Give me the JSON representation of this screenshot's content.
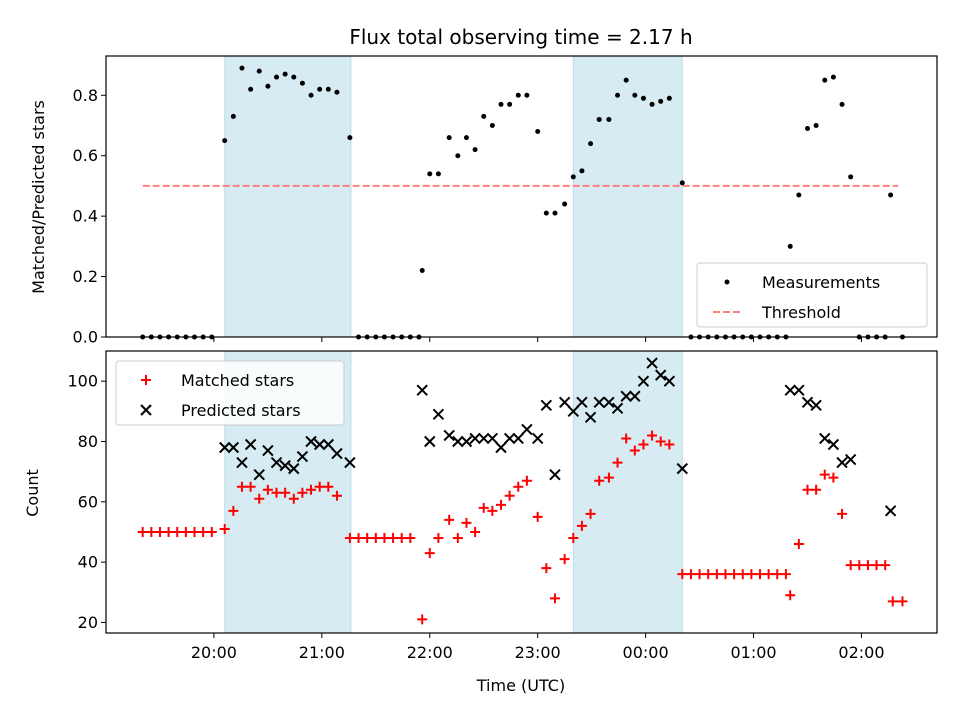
{
  "chart_data": [
    {
      "type": "scatter",
      "title": "Flux total observing time = 2.17 h",
      "ylabel": "Matched/Predicted stars",
      "xlabel": "",
      "x_unit": "hours since 00:00 UTC (times after midnight continue past 24)",
      "xlim": [
        19.0,
        26.7
      ],
      "ylim": [
        0.0,
        0.93
      ],
      "yticks": [
        "0.0",
        "0.2",
        "0.4",
        "0.6",
        "0.8"
      ],
      "ytick_values": [
        0.0,
        0.2,
        0.4,
        0.6,
        0.8
      ],
      "xticks": [
        "20:00",
        "21:00",
        "22:00",
        "23:00",
        "00:00",
        "01:00",
        "02:00"
      ],
      "xtick_values": [
        20,
        21,
        22,
        23,
        24,
        25,
        26
      ],
      "show_xtick_labels": false,
      "legend": {
        "location": "lower-right",
        "entries": [
          {
            "label": "Measurements",
            "marker": "dot",
            "color": "#000000"
          },
          {
            "label": "Threshold",
            "marker": "dashed-line",
            "color": "#ff7f7f"
          }
        ]
      },
      "spans": [
        {
          "x0": 20.1,
          "x1": 21.27,
          "color": "#add8e6"
        },
        {
          "x0": 23.33,
          "x1": 24.34,
          "color": "#add8e6"
        }
      ],
      "threshold": {
        "name": "Threshold",
        "value": 0.5,
        "x0": 19.34,
        "x1": 26.34,
        "color": "#ff7f7f"
      },
      "series": [
        {
          "name": "Measurements",
          "color": "#000000",
          "points": [
            [
              19.34,
              0
            ],
            [
              19.42,
              0
            ],
            [
              19.5,
              0
            ],
            [
              19.58,
              0
            ],
            [
              19.66,
              0
            ],
            [
              19.74,
              0
            ],
            [
              19.82,
              0
            ],
            [
              19.9,
              0
            ],
            [
              19.98,
              0
            ],
            [
              20.1,
              0.65
            ],
            [
              20.18,
              0.73
            ],
            [
              20.26,
              0.89
            ],
            [
              20.34,
              0.82
            ],
            [
              20.42,
              0.88
            ],
            [
              20.5,
              0.83
            ],
            [
              20.58,
              0.86
            ],
            [
              20.66,
              0.87
            ],
            [
              20.74,
              0.86
            ],
            [
              20.82,
              0.84
            ],
            [
              20.9,
              0.8
            ],
            [
              20.98,
              0.82
            ],
            [
              21.06,
              0.82
            ],
            [
              21.14,
              0.81
            ],
            [
              21.26,
              0.66
            ],
            [
              21.34,
              0
            ],
            [
              21.42,
              0
            ],
            [
              21.5,
              0
            ],
            [
              21.58,
              0
            ],
            [
              21.66,
              0
            ],
            [
              21.74,
              0
            ],
            [
              21.82,
              0
            ],
            [
              21.9,
              0
            ],
            [
              21.93,
              0.22
            ],
            [
              22.0,
              0.54
            ],
            [
              22.08,
              0.54
            ],
            [
              22.18,
              0.66
            ],
            [
              22.26,
              0.6
            ],
            [
              22.34,
              0.66
            ],
            [
              22.42,
              0.62
            ],
            [
              22.5,
              0.73
            ],
            [
              22.58,
              0.7
            ],
            [
              22.66,
              0.77
            ],
            [
              22.74,
              0.77
            ],
            [
              22.82,
              0.8
            ],
            [
              22.9,
              0.8
            ],
            [
              23.0,
              0.68
            ],
            [
              23.08,
              0.41
            ],
            [
              23.16,
              0.41
            ],
            [
              23.25,
              0.44
            ],
            [
              23.33,
              0.53
            ],
            [
              23.41,
              0.55
            ],
            [
              23.49,
              0.64
            ],
            [
              23.57,
              0.72
            ],
            [
              23.66,
              0.72
            ],
            [
              23.74,
              0.8
            ],
            [
              23.82,
              0.85
            ],
            [
              23.9,
              0.8
            ],
            [
              23.98,
              0.79
            ],
            [
              24.06,
              0.77
            ],
            [
              24.14,
              0.78
            ],
            [
              24.22,
              0.79
            ],
            [
              24.34,
              0.51
            ],
            [
              24.42,
              0
            ],
            [
              24.5,
              0
            ],
            [
              24.58,
              0
            ],
            [
              24.66,
              0
            ],
            [
              24.74,
              0
            ],
            [
              24.82,
              0
            ],
            [
              24.9,
              0
            ],
            [
              24.98,
              0
            ],
            [
              25.06,
              0
            ],
            [
              25.14,
              0
            ],
            [
              25.22,
              0
            ],
            [
              25.3,
              0
            ],
            [
              25.34,
              0.3
            ],
            [
              25.42,
              0.47
            ],
            [
              25.5,
              0.69
            ],
            [
              25.58,
              0.7
            ],
            [
              25.66,
              0.85
            ],
            [
              25.74,
              0.86
            ],
            [
              25.82,
              0.77
            ],
            [
              25.9,
              0.53
            ],
            [
              25.98,
              0
            ],
            [
              26.06,
              0
            ],
            [
              26.14,
              0
            ],
            [
              26.22,
              0
            ],
            [
              26.27,
              0.47
            ],
            [
              26.38,
              0
            ]
          ]
        }
      ]
    },
    {
      "type": "scatter",
      "title": "",
      "ylabel": "Count",
      "xlabel": "Time (UTC)",
      "x_unit": "hours since 00:00 UTC (times after midnight continue past 24)",
      "xlim": [
        19.0,
        26.7
      ],
      "ylim": [
        16.5,
        110
      ],
      "yticks": [
        "20",
        "40",
        "60",
        "80",
        "100"
      ],
      "ytick_values": [
        20,
        40,
        60,
        80,
        100
      ],
      "xticks": [
        "20:00",
        "21:00",
        "22:00",
        "23:00",
        "00:00",
        "01:00",
        "02:00"
      ],
      "xtick_values": [
        20,
        21,
        22,
        23,
        24,
        25,
        26
      ],
      "show_xtick_labels": true,
      "legend": {
        "location": "upper-left",
        "entries": [
          {
            "label": "Matched stars",
            "marker": "plus",
            "color": "#ff0000"
          },
          {
            "label": "Predicted stars",
            "marker": "x",
            "color": "#000000"
          }
        ]
      },
      "spans": [
        {
          "x0": 20.1,
          "x1": 21.27,
          "color": "#add8e6"
        },
        {
          "x0": 23.33,
          "x1": 24.34,
          "color": "#add8e6"
        }
      ],
      "series": [
        {
          "name": "Matched stars",
          "marker": "plus",
          "color": "#ff0000",
          "points": [
            [
              19.34,
              50
            ],
            [
              19.42,
              50
            ],
            [
              19.5,
              50
            ],
            [
              19.58,
              50
            ],
            [
              19.66,
              50
            ],
            [
              19.74,
              50
            ],
            [
              19.82,
              50
            ],
            [
              19.9,
              50
            ],
            [
              19.98,
              50
            ],
            [
              20.1,
              51
            ],
            [
              20.18,
              57
            ],
            [
              20.26,
              65
            ],
            [
              20.34,
              65
            ],
            [
              20.42,
              61
            ],
            [
              20.5,
              64
            ],
            [
              20.58,
              63
            ],
            [
              20.66,
              63
            ],
            [
              20.74,
              61
            ],
            [
              20.82,
              63
            ],
            [
              20.9,
              64
            ],
            [
              20.98,
              65
            ],
            [
              21.06,
              65
            ],
            [
              21.14,
              62
            ],
            [
              21.26,
              48
            ],
            [
              21.34,
              48
            ],
            [
              21.42,
              48
            ],
            [
              21.5,
              48
            ],
            [
              21.58,
              48
            ],
            [
              21.66,
              48
            ],
            [
              21.74,
              48
            ],
            [
              21.82,
              48
            ],
            [
              21.93,
              21
            ],
            [
              22.0,
              43
            ],
            [
              22.08,
              48
            ],
            [
              22.18,
              54
            ],
            [
              22.26,
              48
            ],
            [
              22.34,
              53
            ],
            [
              22.42,
              50
            ],
            [
              22.5,
              58
            ],
            [
              22.58,
              57
            ],
            [
              22.66,
              59
            ],
            [
              22.74,
              62
            ],
            [
              22.82,
              65
            ],
            [
              22.9,
              67
            ],
            [
              23.0,
              55
            ],
            [
              23.08,
              38
            ],
            [
              23.16,
              28
            ],
            [
              23.25,
              41
            ],
            [
              23.33,
              48
            ],
            [
              23.41,
              52
            ],
            [
              23.49,
              56
            ],
            [
              23.57,
              67
            ],
            [
              23.66,
              68
            ],
            [
              23.74,
              73
            ],
            [
              23.82,
              81
            ],
            [
              23.9,
              77
            ],
            [
              23.98,
              79
            ],
            [
              24.06,
              82
            ],
            [
              24.14,
              80
            ],
            [
              24.22,
              79
            ],
            [
              24.34,
              36
            ],
            [
              24.42,
              36
            ],
            [
              24.5,
              36
            ],
            [
              24.58,
              36
            ],
            [
              24.66,
              36
            ],
            [
              24.74,
              36
            ],
            [
              24.82,
              36
            ],
            [
              24.9,
              36
            ],
            [
              24.98,
              36
            ],
            [
              25.06,
              36
            ],
            [
              25.14,
              36
            ],
            [
              25.22,
              36
            ],
            [
              25.3,
              36
            ],
            [
              25.34,
              29
            ],
            [
              25.42,
              46
            ],
            [
              25.5,
              64
            ],
            [
              25.58,
              64
            ],
            [
              25.66,
              69
            ],
            [
              25.74,
              68
            ],
            [
              25.82,
              56
            ],
            [
              25.9,
              39
            ],
            [
              25.98,
              39
            ],
            [
              26.06,
              39
            ],
            [
              26.14,
              39
            ],
            [
              26.22,
              39
            ],
            [
              26.29,
              27
            ],
            [
              26.38,
              27
            ]
          ]
        },
        {
          "name": "Predicted stars",
          "marker": "x",
          "color": "#000000",
          "points": [
            [
              20.1,
              78
            ],
            [
              20.18,
              78
            ],
            [
              20.26,
              73
            ],
            [
              20.34,
              79
            ],
            [
              20.42,
              69
            ],
            [
              20.5,
              77
            ],
            [
              20.58,
              73
            ],
            [
              20.66,
              72
            ],
            [
              20.74,
              71
            ],
            [
              20.82,
              75
            ],
            [
              20.9,
              80
            ],
            [
              20.98,
              79
            ],
            [
              21.06,
              79
            ],
            [
              21.14,
              76
            ],
            [
              21.26,
              73
            ],
            [
              21.93,
              97
            ],
            [
              22.0,
              80
            ],
            [
              22.08,
              89
            ],
            [
              22.18,
              82
            ],
            [
              22.26,
              80
            ],
            [
              22.34,
              80
            ],
            [
              22.42,
              81
            ],
            [
              22.5,
              81
            ],
            [
              22.58,
              81
            ],
            [
              22.66,
              78
            ],
            [
              22.74,
              81
            ],
            [
              22.82,
              81
            ],
            [
              22.9,
              84
            ],
            [
              23.0,
              81
            ],
            [
              23.08,
              92
            ],
            [
              23.16,
              69
            ],
            [
              23.25,
              93
            ],
            [
              23.33,
              90
            ],
            [
              23.41,
              93
            ],
            [
              23.49,
              88
            ],
            [
              23.57,
              93
            ],
            [
              23.66,
              93
            ],
            [
              23.74,
              91
            ],
            [
              23.82,
              95
            ],
            [
              23.9,
              95
            ],
            [
              23.98,
              100
            ],
            [
              24.06,
              106
            ],
            [
              24.14,
              102
            ],
            [
              24.22,
              100
            ],
            [
              24.34,
              71
            ],
            [
              25.34,
              97
            ],
            [
              25.42,
              97
            ],
            [
              25.5,
              93
            ],
            [
              25.58,
              92
            ],
            [
              25.66,
              81
            ],
            [
              25.74,
              79
            ],
            [
              25.82,
              73
            ],
            [
              25.9,
              74
            ],
            [
              26.27,
              57
            ]
          ]
        }
      ]
    }
  ]
}
